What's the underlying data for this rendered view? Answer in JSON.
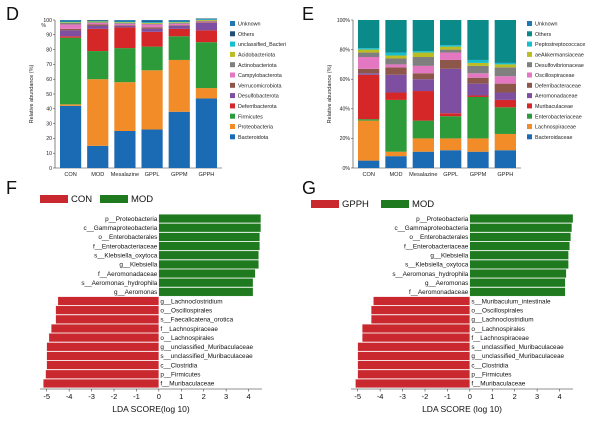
{
  "panels": {
    "D": "D",
    "E": "E",
    "F": "F",
    "G": "G"
  },
  "chart_data": [
    {
      "panel": "D",
      "type": "bar",
      "stacked": true,
      "ylabel": "Relative abundance (%)",
      "y_unit_label": "%",
      "ylim": [
        0,
        100
      ],
      "y_ticks": [
        "0",
        "10",
        "20",
        "30",
        "40",
        "50",
        "60",
        "70",
        "80",
        "90",
        "100"
      ],
      "categories": [
        "CON",
        "MOD",
        "Mesalazine",
        "GPPL",
        "GPPM",
        "GPPH"
      ],
      "legend_position": "right",
      "series": [
        {
          "name": "Bacteroidota",
          "color": "#1a6bb3",
          "values": [
            42,
            15,
            25,
            26,
            38,
            47
          ]
        },
        {
          "name": "Proteobacteria",
          "color": "#f28c28",
          "values": [
            1,
            45,
            33,
            40,
            35,
            7
          ]
        },
        {
          "name": "Firmicutes",
          "color": "#2e9b3a",
          "values": [
            45,
            19,
            23,
            16,
            16,
            31
          ]
        },
        {
          "name": "Deferribacterota",
          "color": "#d62728",
          "values": [
            1,
            15,
            14,
            10,
            5,
            8
          ]
        },
        {
          "name": "Desulfobacterota",
          "color": "#7e4fa0",
          "values": [
            4,
            2,
            1,
            2,
            2,
            5
          ]
        },
        {
          "name": "Verrucomicrobiota",
          "color": "#8c564b",
          "values": [
            1,
            1,
            0.5,
            1,
            0.5,
            0.5
          ]
        },
        {
          "name": "Campylobacterota",
          "color": "#e377c2",
          "values": [
            3,
            1,
            1,
            2,
            1,
            0.5
          ]
        },
        {
          "name": "Actinobacteriota",
          "color": "#7f7f7f",
          "values": [
            1,
            0.5,
            0.5,
            0.5,
            0.5,
            0.5
          ]
        },
        {
          "name": "Acidobacteriota",
          "color": "#bcbd22",
          "values": [
            0.5,
            0.5,
            0.5,
            0.5,
            0.5,
            0.5
          ]
        },
        {
          "name": "unclassified_Bacteri",
          "color": "#17becf",
          "values": [
            0.5,
            0.5,
            0.5,
            0.5,
            0.5,
            0.5
          ]
        },
        {
          "name": "Others",
          "color": "#1f4e79",
          "values": [
            0.5,
            0.5,
            0.5,
            0.5,
            0.5,
            0.5
          ]
        },
        {
          "name": "Unknown",
          "color": "#1f77b4",
          "values": [
            0.5,
            0,
            0,
            0,
            0,
            0
          ]
        }
      ]
    },
    {
      "panel": "E",
      "type": "bar",
      "stacked": true,
      "ylabel": "Relative abundance (%)",
      "ylim": [
        0,
        100
      ],
      "y_ticks": [
        "0%",
        "20%",
        "40%",
        "60%",
        "80%",
        "100%"
      ],
      "categories": [
        "CON",
        "MOD",
        "Mesalazine",
        "GPPL",
        "GPPM",
        "GPPH"
      ],
      "legend_position": "right",
      "series": [
        {
          "name": "Bacteroidaceae",
          "color": "#1a6bb3",
          "values": [
            5,
            8,
            11,
            12,
            11,
            12
          ]
        },
        {
          "name": "Lachnospiraceae",
          "color": "#f28c28",
          "values": [
            27,
            3,
            9,
            8,
            9,
            11
          ]
        },
        {
          "name": "Enterobacteriaceae",
          "color": "#2e9b3a",
          "values": [
            1,
            35,
            12,
            15,
            28,
            18
          ]
        },
        {
          "name": "Muribaculaceae",
          "color": "#d62728",
          "values": [
            30,
            5,
            20,
            2,
            1,
            5
          ]
        },
        {
          "name": "Aeromonadaceae",
          "color": "#7e4fa0",
          "values": [
            1,
            12,
            8,
            30,
            8,
            5
          ]
        },
        {
          "name": "Deferribacteraceae",
          "color": "#8c564b",
          "values": [
            3,
            5,
            4,
            6,
            4,
            6
          ]
        },
        {
          "name": "Oscillospiraceae",
          "color": "#e377c2",
          "values": [
            8,
            2,
            5,
            5,
            3,
            5
          ]
        },
        {
          "name": "Desulfovibrionaceae",
          "color": "#7f7f7f",
          "values": [
            3,
            4,
            6,
            2,
            5,
            6
          ]
        },
        {
          "name": "aeAkkermansiaceae",
          "color": "#bcbd22",
          "values": [
            2,
            2,
            3,
            2,
            2,
            2
          ]
        },
        {
          "name": "Peptostreptococcace",
          "color": "#17becf",
          "values": [
            1,
            2,
            1,
            1,
            2,
            1
          ]
        },
        {
          "name": "Others",
          "color": "#0b8a8a",
          "values": [
            19,
            22,
            21,
            17,
            27,
            29
          ]
        },
        {
          "name": "Unknown",
          "color": "#1f77b4",
          "values": [
            0,
            0,
            0,
            0,
            0,
            0
          ]
        }
      ]
    },
    {
      "panel": "F",
      "type": "bar",
      "orientation": "horizontal",
      "xlabel": "LDA SCORE(log 10)",
      "xlim": [
        -5.3,
        4.6
      ],
      "x_ticks": [
        "-5",
        "-4",
        "-3",
        "-2",
        "-1",
        "0",
        "1",
        "2",
        "3",
        "4"
      ],
      "legend": [
        {
          "name": "CON",
          "color": "#c8282e"
        },
        {
          "name": "MOD",
          "color": "#1f7a1f"
        }
      ],
      "bars": [
        {
          "label": "p__Proteobacteria",
          "value": 4.55,
          "group": "MOD"
        },
        {
          "label": "c__Gammaproteobacteria",
          "value": 4.55,
          "group": "MOD"
        },
        {
          "label": "o__Enterobacterales",
          "value": 4.5,
          "group": "MOD"
        },
        {
          "label": "f__Enterobacteriaceae",
          "value": 4.5,
          "group": "MOD"
        },
        {
          "label": "s__Klebsiella_oxytoca",
          "value": 4.45,
          "group": "MOD"
        },
        {
          "label": "g__Klebsiella",
          "value": 4.45,
          "group": "MOD"
        },
        {
          "label": "f__Aeromonadaceae",
          "value": 4.3,
          "group": "MOD"
        },
        {
          "label": "s__Aeromonas_hydrophila",
          "value": 4.2,
          "group": "MOD"
        },
        {
          "label": "g__Aeromonas",
          "value": 4.2,
          "group": "MOD"
        },
        {
          "label": "g__Lachnoclostridium",
          "value": -4.5,
          "group": "CON"
        },
        {
          "label": "o__Oscillospirales",
          "value": -4.6,
          "group": "CON"
        },
        {
          "label": "s__Faecalicatena_orotica",
          "value": -4.6,
          "group": "CON"
        },
        {
          "label": "f__Lachnospiraceae",
          "value": -4.8,
          "group": "CON"
        },
        {
          "label": "o__Lachnospirales",
          "value": -4.9,
          "group": "CON"
        },
        {
          "label": "g__unclassified_Muribaculaceae",
          "value": -5.0,
          "group": "CON"
        },
        {
          "label": "s__unclassified_Muribaculaceae",
          "value": -5.0,
          "group": "CON"
        },
        {
          "label": "c__Clostridia",
          "value": -5.0,
          "group": "CON"
        },
        {
          "label": "p__Firmicutes",
          "value": -5.05,
          "group": "CON"
        },
        {
          "label": "f__Muribaculaceae",
          "value": -5.15,
          "group": "CON"
        }
      ]
    },
    {
      "panel": "G",
      "type": "bar",
      "orientation": "horizontal",
      "xlabel": "LDA SCORE (log 10)",
      "xlim": [
        -5.3,
        4.6
      ],
      "x_ticks": [
        "-5",
        "-4",
        "-3",
        "-2",
        "-1",
        "0",
        "1",
        "2",
        "3",
        "4"
      ],
      "legend": [
        {
          "name": "GPPH",
          "color": "#c8282e"
        },
        {
          "name": "MOD",
          "color": "#1f7a1f"
        }
      ],
      "bars": [
        {
          "label": "p__Proteobacteria",
          "value": 4.6,
          "group": "MOD"
        },
        {
          "label": "c__Gammaproteobacteria",
          "value": 4.55,
          "group": "MOD"
        },
        {
          "label": "o__Enterobacterales",
          "value": 4.5,
          "group": "MOD"
        },
        {
          "label": "f__Enterobacteriaceae",
          "value": 4.45,
          "group": "MOD"
        },
        {
          "label": "g__Klebsiella",
          "value": 4.4,
          "group": "MOD"
        },
        {
          "label": "s__Klebsiella_oxytoca",
          "value": 4.4,
          "group": "MOD"
        },
        {
          "label": "s__Aeromonas_hydrophila",
          "value": 4.3,
          "group": "MOD"
        },
        {
          "label": "g__Aeromonas",
          "value": 4.25,
          "group": "MOD"
        },
        {
          "label": "f__Aeromonadaceae",
          "value": 4.25,
          "group": "MOD"
        },
        {
          "label": "s__Muribaculum_intestinale",
          "value": -4.3,
          "group": "GPPH"
        },
        {
          "label": "o__Oscillospirales",
          "value": -4.4,
          "group": "GPPH"
        },
        {
          "label": "g__Lachnoclostridium",
          "value": -4.4,
          "group": "GPPH"
        },
        {
          "label": "o__Lachnospirales",
          "value": -4.8,
          "group": "GPPH"
        },
        {
          "label": "f__Lachnospiraceae",
          "value": -4.8,
          "group": "GPPH"
        },
        {
          "label": "s__unclassified_Muribaculaceae",
          "value": -5.0,
          "group": "GPPH"
        },
        {
          "label": "g__unclassified_Muribaculaceae",
          "value": -5.0,
          "group": "GPPH"
        },
        {
          "label": "c__Clostridia",
          "value": -5.0,
          "group": "GPPH"
        },
        {
          "label": "p__Firmicutes",
          "value": -5.0,
          "group": "GPPH"
        },
        {
          "label": "f__Muribaculaceae",
          "value": -5.1,
          "group": "GPPH"
        }
      ]
    }
  ]
}
